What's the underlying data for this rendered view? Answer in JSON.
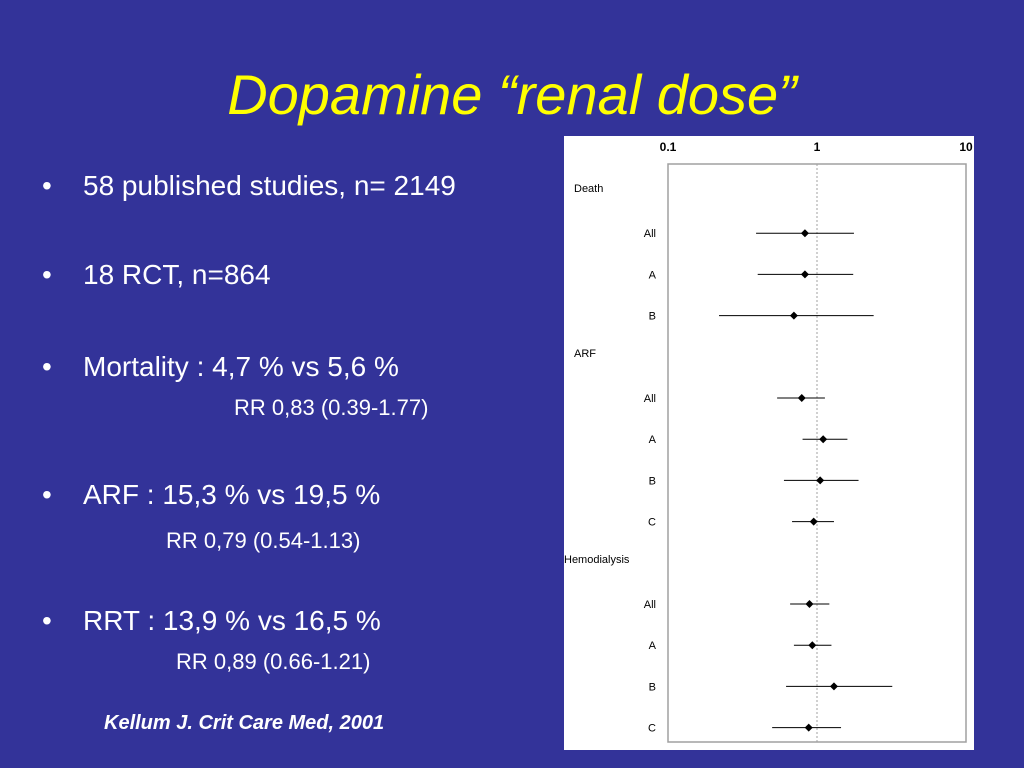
{
  "slide": {
    "title": "Dopamine “renal dose”",
    "bullets": [
      {
        "text": "58 published studies, n= 2149"
      },
      {
        "text": "18 RCT, n=864"
      },
      {
        "text": "Mortality : 4,7 % vs 5,6 %",
        "sub": "RR 0,83 (0.39-1.77)"
      },
      {
        "text": "ARF : 15,3 % vs 19,5 %",
        "sub": "RR 0,79 (0.54-1.13)"
      },
      {
        "text": "RRT : 13,9 % vs 16,5 %",
        "sub": "RR 0,89 (0.66-1.21)"
      }
    ],
    "bullet_glyph": "•",
    "citation": "Kellum J. Crit Care Med, 2001"
  },
  "chart_data": {
    "type": "scatter",
    "subtype": "forest-plot",
    "x_scale": "log",
    "xlim": [
      0.1,
      10
    ],
    "x_ticks": [
      "0.1",
      "1",
      "10"
    ],
    "reference_line": 1,
    "grid": false,
    "groups": [
      {
        "name": "Death",
        "rows": [
          {
            "label": "All",
            "estimate": 0.83,
            "lower": 0.39,
            "upper": 1.77
          },
          {
            "label": "A",
            "estimate": 0.83,
            "lower": 0.4,
            "upper": 1.75
          },
          {
            "label": "B",
            "estimate": 0.7,
            "lower": 0.22,
            "upper": 2.4
          }
        ]
      },
      {
        "name": "ARF",
        "rows": [
          {
            "label": "All",
            "estimate": 0.79,
            "lower": 0.54,
            "upper": 1.13
          },
          {
            "label": "A",
            "estimate": 1.1,
            "lower": 0.8,
            "upper": 1.6
          },
          {
            "label": "B",
            "estimate": 1.05,
            "lower": 0.6,
            "upper": 1.9
          },
          {
            "label": "C",
            "estimate": 0.95,
            "lower": 0.68,
            "upper": 1.3
          }
        ]
      },
      {
        "name": "Hemodialysis",
        "rows": [
          {
            "label": "All",
            "estimate": 0.89,
            "lower": 0.66,
            "upper": 1.21
          },
          {
            "label": "A",
            "estimate": 0.93,
            "lower": 0.7,
            "upper": 1.25
          },
          {
            "label": "B",
            "estimate": 1.3,
            "lower": 0.62,
            "upper": 3.2
          },
          {
            "label": "C",
            "estimate": 0.88,
            "lower": 0.5,
            "upper": 1.45
          }
        ]
      }
    ],
    "colors": {
      "marker": "#000000",
      "frame": "#a0a0a0",
      "text": "#000000"
    }
  }
}
